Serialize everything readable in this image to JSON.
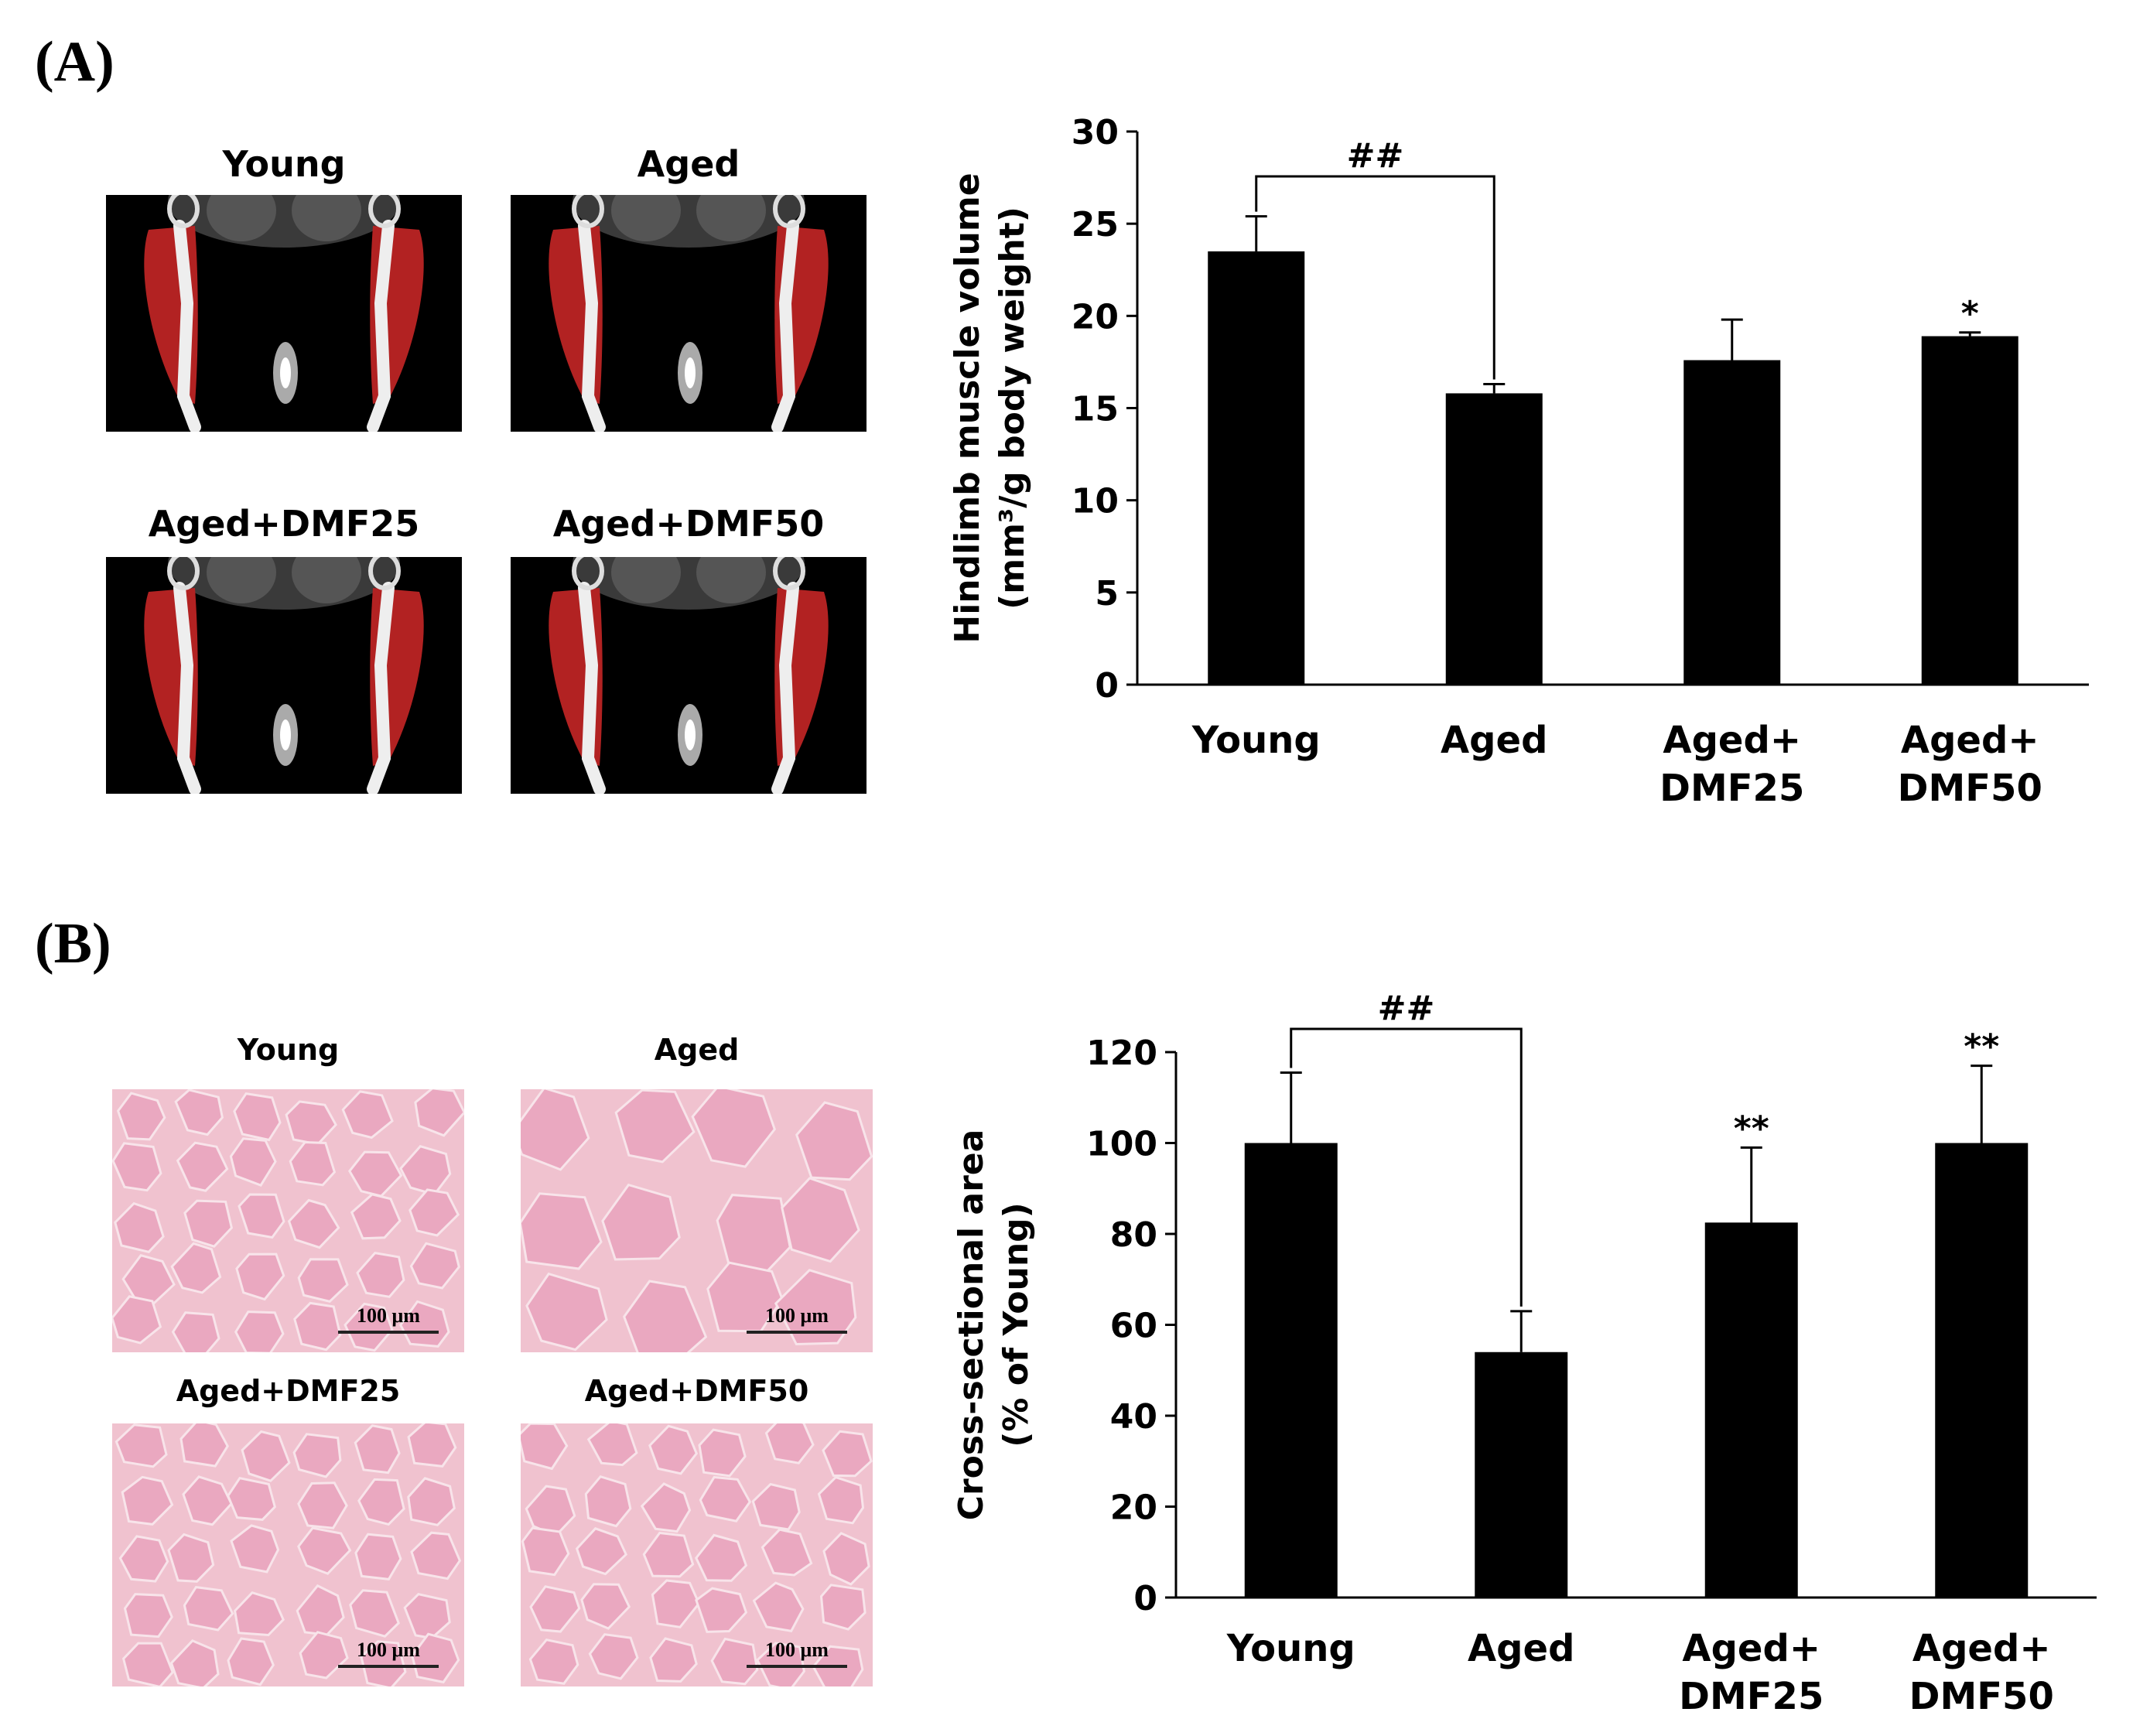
{
  "panel_a": {
    "label": "(A)",
    "image_titles": [
      "Young",
      "Aged",
      "Aged+DMF25",
      "Aged+DMF50"
    ]
  },
  "panel_b": {
    "label": "(B)",
    "image_titles": [
      "Young",
      "Aged",
      "Aged+DMF25",
      "Aged+DMF50"
    ],
    "scale_bar_label": "100 μm"
  },
  "colors": {
    "bar": "#000000",
    "muscle_highlight": "#b22222",
    "he_stain_bg": "#f0c2cf",
    "he_stain_fiber": "#eaa8c0"
  },
  "chart_data": [
    {
      "type": "bar",
      "categories": [
        [
          "Young"
        ],
        [
          "Aged"
        ],
        [
          "Aged+",
          "DMF25"
        ],
        [
          "Aged+",
          "DMF50"
        ]
      ],
      "values": [
        23.5,
        15.8,
        17.6,
        18.9
      ],
      "errors": [
        1.9,
        0.5,
        2.2,
        0.2
      ],
      "annotations": [
        "",
        "",
        "",
        "*"
      ],
      "bracket": {
        "from": 0,
        "to": 1,
        "label": "##"
      },
      "title": "",
      "xlabel": "",
      "ylabel": [
        "Hindlimb muscle volume",
        "(mm³/g body weight)"
      ],
      "ylim": [
        0,
        30
      ],
      "yticks": [
        0,
        5,
        10,
        15,
        20,
        25,
        30
      ],
      "grid": false
    },
    {
      "type": "bar",
      "categories": [
        [
          "Young"
        ],
        [
          "Aged"
        ],
        [
          "Aged+",
          "DMF25"
        ],
        [
          "Aged+",
          "DMF50"
        ]
      ],
      "values": [
        100,
        54,
        82.5,
        100
      ],
      "errors": [
        15.5,
        9,
        16.5,
        17
      ],
      "annotations": [
        "",
        "",
        "**",
        "**"
      ],
      "bracket": {
        "from": 0,
        "to": 1,
        "label": "##"
      },
      "title": "",
      "xlabel": "",
      "ylabel": [
        "Cross-sectional area",
        "(% of Young)"
      ],
      "ylim": [
        0,
        120
      ],
      "yticks": [
        0,
        20,
        40,
        60,
        80,
        100,
        120
      ],
      "grid": false
    }
  ]
}
